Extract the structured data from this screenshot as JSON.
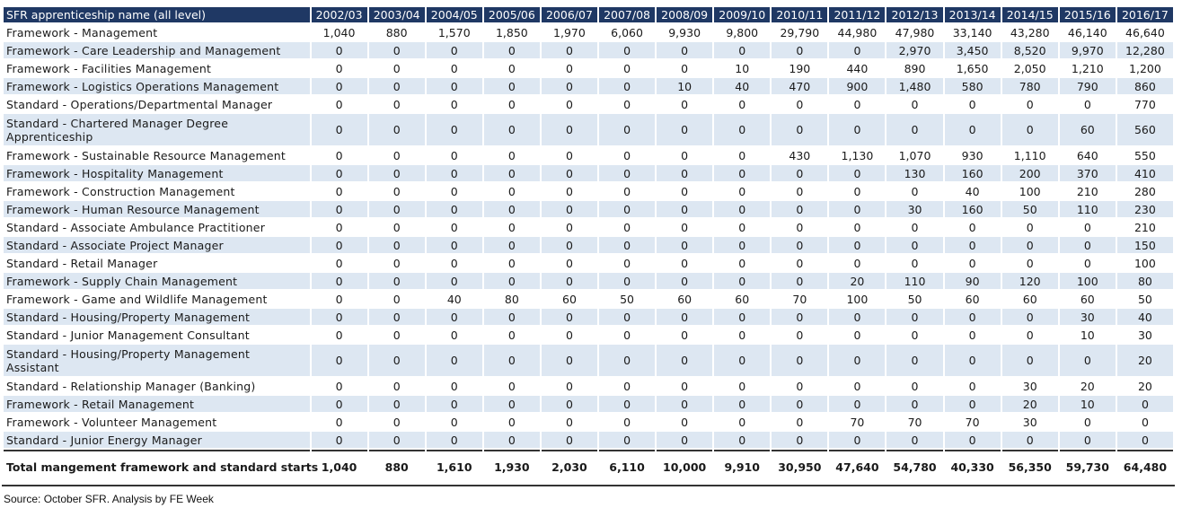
{
  "header": {
    "name_col": "SFR apprenticeship name (all level)",
    "years": [
      "2002/03",
      "2003/04",
      "2004/05",
      "2005/06",
      "2006/07",
      "2007/08",
      "2008/09",
      "2009/10",
      "2010/11",
      "2011/12",
      "2012/13",
      "2013/14",
      "2014/15",
      "2015/16",
      "2016/17"
    ]
  },
  "rows": [
    {
      "name": "Framework - Management",
      "values": [
        "1,040",
        "880",
        "1,570",
        "1,850",
        "1,970",
        "6,060",
        "9,930",
        "9,800",
        "29,790",
        "44,980",
        "47,980",
        "33,140",
        "43,280",
        "46,140",
        "46,640"
      ]
    },
    {
      "name": "Framework - Care Leadership and Management",
      "values": [
        "0",
        "0",
        "0",
        "0",
        "0",
        "0",
        "0",
        "0",
        "0",
        "0",
        "2,970",
        "3,450",
        "8,520",
        "9,970",
        "12,280"
      ]
    },
    {
      "name": "Framework - Facilities Management",
      "values": [
        "0",
        "0",
        "0",
        "0",
        "0",
        "0",
        "0",
        "10",
        "190",
        "440",
        "890",
        "1,650",
        "2,050",
        "1,210",
        "1,200"
      ]
    },
    {
      "name": "Framework - Logistics Operations Management",
      "values": [
        "0",
        "0",
        "0",
        "0",
        "0",
        "0",
        "10",
        "40",
        "470",
        "900",
        "1,480",
        "580",
        "780",
        "790",
        "860"
      ]
    },
    {
      "name": "Standard - Operations/Departmental Manager",
      "values": [
        "0",
        "0",
        "0",
        "0",
        "0",
        "0",
        "0",
        "0",
        "0",
        "0",
        "0",
        "0",
        "0",
        "0",
        "770"
      ]
    },
    {
      "name": "Standard - Chartered Manager Degree Apprenticeship",
      "values": [
        "0",
        "0",
        "0",
        "0",
        "0",
        "0",
        "0",
        "0",
        "0",
        "0",
        "0",
        "0",
        "0",
        "60",
        "560"
      ],
      "tall": true
    },
    {
      "name": "Framework - Sustainable Resource Management",
      "values": [
        "0",
        "0",
        "0",
        "0",
        "0",
        "0",
        "0",
        "0",
        "430",
        "1,130",
        "1,070",
        "930",
        "1,110",
        "640",
        "550"
      ]
    },
    {
      "name": "Framework - Hospitality Management",
      "values": [
        "0",
        "0",
        "0",
        "0",
        "0",
        "0",
        "0",
        "0",
        "0",
        "0",
        "130",
        "160",
        "200",
        "370",
        "410"
      ]
    },
    {
      "name": "Framework - Construction Management",
      "values": [
        "0",
        "0",
        "0",
        "0",
        "0",
        "0",
        "0",
        "0",
        "0",
        "0",
        "0",
        "40",
        "100",
        "210",
        "280"
      ]
    },
    {
      "name": "Framework - Human Resource Management",
      "values": [
        "0",
        "0",
        "0",
        "0",
        "0",
        "0",
        "0",
        "0",
        "0",
        "0",
        "30",
        "160",
        "50",
        "110",
        "230"
      ]
    },
    {
      "name": "Standard - Associate Ambulance Practitioner",
      "values": [
        "0",
        "0",
        "0",
        "0",
        "0",
        "0",
        "0",
        "0",
        "0",
        "0",
        "0",
        "0",
        "0",
        "0",
        "210"
      ]
    },
    {
      "name": "Standard - Associate Project Manager",
      "values": [
        "0",
        "0",
        "0",
        "0",
        "0",
        "0",
        "0",
        "0",
        "0",
        "0",
        "0",
        "0",
        "0",
        "0",
        "150"
      ]
    },
    {
      "name": "Standard - Retail Manager",
      "values": [
        "0",
        "0",
        "0",
        "0",
        "0",
        "0",
        "0",
        "0",
        "0",
        "0",
        "0",
        "0",
        "0",
        "0",
        "100"
      ]
    },
    {
      "name": "Framework - Supply Chain Management",
      "values": [
        "0",
        "0",
        "0",
        "0",
        "0",
        "0",
        "0",
        "0",
        "0",
        "20",
        "110",
        "90",
        "120",
        "100",
        "80"
      ]
    },
    {
      "name": "Framework - Game and Wildlife Management",
      "values": [
        "0",
        "0",
        "40",
        "80",
        "60",
        "50",
        "60",
        "60",
        "70",
        "100",
        "50",
        "60",
        "60",
        "60",
        "50"
      ]
    },
    {
      "name": "Standard - Housing/Property Management",
      "values": [
        "0",
        "0",
        "0",
        "0",
        "0",
        "0",
        "0",
        "0",
        "0",
        "0",
        "0",
        "0",
        "0",
        "30",
        "40"
      ]
    },
    {
      "name": "Standard - Junior Management Consultant",
      "values": [
        "0",
        "0",
        "0",
        "0",
        "0",
        "0",
        "0",
        "0",
        "0",
        "0",
        "0",
        "0",
        "0",
        "10",
        "30"
      ]
    },
    {
      "name": "Standard - Housing/Property Management Assistant",
      "values": [
        "0",
        "0",
        "0",
        "0",
        "0",
        "0",
        "0",
        "0",
        "0",
        "0",
        "0",
        "0",
        "0",
        "0",
        "20"
      ],
      "tall": true
    },
    {
      "name": "Standard - Relationship Manager (Banking)",
      "values": [
        "0",
        "0",
        "0",
        "0",
        "0",
        "0",
        "0",
        "0",
        "0",
        "0",
        "0",
        "0",
        "30",
        "20",
        "20"
      ]
    },
    {
      "name": "Framework - Retail Management",
      "values": [
        "0",
        "0",
        "0",
        "0",
        "0",
        "0",
        "0",
        "0",
        "0",
        "0",
        "0",
        "0",
        "20",
        "10",
        "0"
      ]
    },
    {
      "name": "Framework - Volunteer Management",
      "values": [
        "0",
        "0",
        "0",
        "0",
        "0",
        "0",
        "0",
        "0",
        "0",
        "70",
        "70",
        "70",
        "30",
        "0",
        "0"
      ]
    },
    {
      "name": "Standard - Junior Energy Manager",
      "values": [
        "0",
        "0",
        "0",
        "0",
        "0",
        "0",
        "0",
        "0",
        "0",
        "0",
        "0",
        "0",
        "0",
        "0",
        "0"
      ]
    }
  ],
  "total": {
    "name": "Total mangement framework and standard starts",
    "values": [
      "1,040",
      "880",
      "1,610",
      "1,930",
      "2,030",
      "6,110",
      "10,000",
      "9,910",
      "30,950",
      "47,640",
      "54,780",
      "40,330",
      "56,350",
      "59,730",
      "64,480"
    ]
  },
  "source": "Source: October SFR. Analysis by FE Week",
  "colors": {
    "header_bg": "#1f3864",
    "stripe": "#dde7f2"
  }
}
